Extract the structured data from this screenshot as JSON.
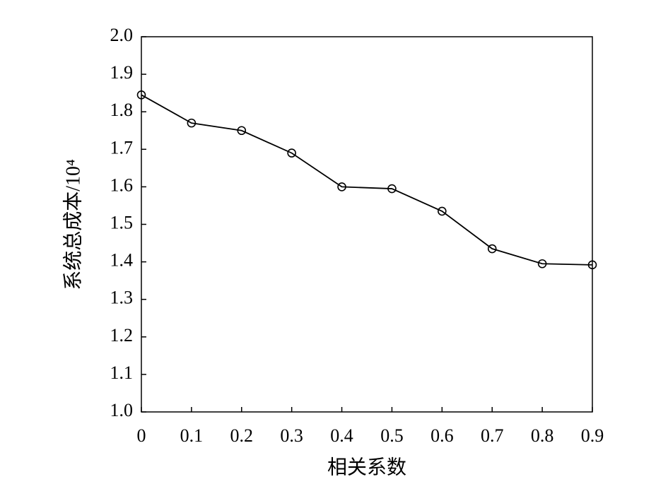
{
  "chart_data": {
    "type": "line",
    "x_label": "相关系数",
    "y_label": "系统总成本/10⁴",
    "x": [
      0,
      0.1,
      0.2,
      0.3,
      0.4,
      0.5,
      0.6,
      0.7,
      0.8,
      0.9
    ],
    "series": [
      {
        "color": "#000000",
        "values": [
          1.845,
          1.77,
          1.75,
          1.69,
          1.6,
          1.595,
          1.535,
          1.435,
          1.395,
          1.392
        ]
      }
    ],
    "xlim": [
      0,
      0.9
    ],
    "xticks": [
      0,
      0.1,
      0.2,
      0.3,
      0.4,
      0.5,
      0.6,
      0.7,
      0.8,
      0.9
    ],
    "ylim": [
      1.0,
      2.0
    ],
    "yticks": [
      {
        "value": 1.0,
        "label": "1.0"
      },
      1.1,
      1.2,
      1.3,
      1.4,
      1.5,
      1.6,
      1.7,
      1.8,
      1.9,
      {
        "value": 2.0,
        "label": "2.0"
      }
    ],
    "grid": false
  }
}
